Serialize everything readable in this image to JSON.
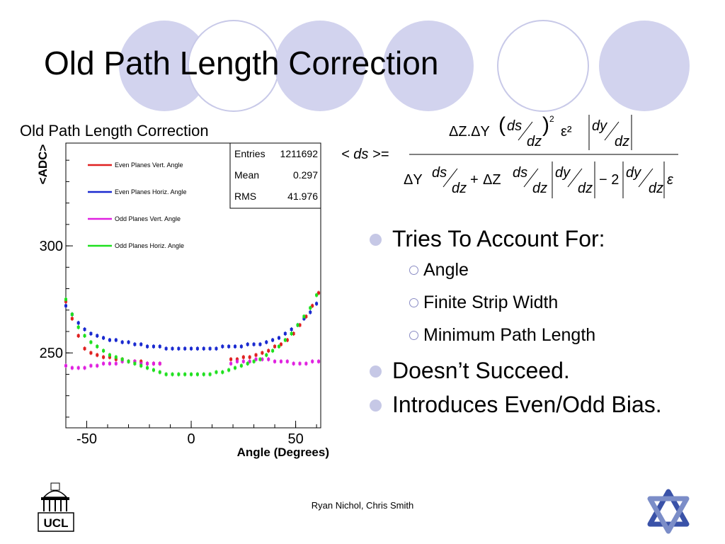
{
  "slide": {
    "title": "Old Path Length Correction",
    "footer": "Ryan Nichol, Chris Smith",
    "logo_left": "UCL"
  },
  "bullets": [
    {
      "text": "Tries To Account For:",
      "level": 1
    },
    {
      "text": "Angle",
      "level": 2
    },
    {
      "text": "Finite Strip Width",
      "level": 2
    },
    {
      "text": "Minimum Path Length",
      "level": 2
    },
    {
      "text": "Doesn’t Succeed.",
      "level": 1
    },
    {
      "text": "Introduces Even/Odd Bias.",
      "level": 1
    }
  ],
  "formula": {
    "lhs": "< ds >=",
    "num_a": "ΔZ.ΔY",
    "ds": "ds",
    "dz": "dz",
    "dy": "dy",
    "sq": "2",
    "minus": "−",
    "plus": "+",
    "eps": "ε",
    "epssq": "ε²",
    "dY": "ΔY",
    "dZ": "ΔZ",
    "two": "− 2"
  },
  "chart_data": {
    "type": "scatter",
    "title": "Old Path Length Correction",
    "xlabel": "Angle (Degrees)",
    "ylabel": "<ADC>",
    "xlim": [
      -60,
      62
    ],
    "ylim": [
      215,
      348
    ],
    "xticks": [
      -50,
      0,
      50
    ],
    "yticks": [
      250,
      300
    ],
    "stats": {
      "entries_label": "Entries",
      "entries": "1211692",
      "mean_label": "Mean",
      "mean": "0.297",
      "rms_label": "RMS",
      "rms": "41.976"
    },
    "series": [
      {
        "name": "Even Planes Vert. Angle",
        "color": "#e02020",
        "x": [
          -60,
          -57,
          -54,
          -51,
          -48,
          -45,
          -42,
          -39,
          -36,
          -33,
          -30,
          -27,
          -24,
          -21,
          -18,
          -15,
          19,
          22,
          25,
          28,
          31,
          34,
          37,
          40,
          43,
          46,
          49,
          52,
          55,
          58,
          61
        ],
        "y": [
          274,
          266,
          258,
          252,
          250,
          249,
          248,
          248,
          247,
          247,
          246,
          246,
          246,
          245,
          245,
          245,
          247,
          247,
          248,
          248,
          249,
          250,
          251,
          253,
          254,
          256,
          259,
          263,
          267,
          272,
          278
        ]
      },
      {
        "name": "Even Planes Horiz. Angle",
        "color": "#1a2ad0",
        "x": [
          -60,
          -57,
          -54,
          -51,
          -48,
          -45,
          -42,
          -39,
          -36,
          -33,
          -30,
          -27,
          -24,
          -21,
          -18,
          -15,
          -12,
          -9,
          -6,
          -3,
          0,
          3,
          6,
          9,
          12,
          15,
          18,
          21,
          24,
          27,
          30,
          33,
          36,
          39,
          42,
          45,
          48,
          51,
          54,
          57,
          60
        ],
        "y": [
          272,
          268,
          264,
          261,
          259,
          258,
          257,
          256,
          256,
          255,
          255,
          254,
          254,
          253,
          253,
          253,
          252,
          252,
          252,
          252,
          252,
          252,
          252,
          252,
          252,
          253,
          253,
          253,
          253,
          254,
          254,
          254,
          255,
          256,
          257,
          259,
          261,
          263,
          266,
          269,
          273
        ]
      },
      {
        "name": "Odd Planes Vert. Angle",
        "color": "#e020e0",
        "x": [
          -60,
          -57,
          -54,
          -51,
          -48,
          -45,
          -42,
          -39,
          -36,
          -33,
          -30,
          -27,
          -24,
          -21,
          -18,
          -15,
          19,
          22,
          25,
          28,
          31,
          34,
          37,
          40,
          43,
          46,
          49,
          52,
          55,
          58,
          61
        ],
        "y": [
          244,
          243,
          243,
          243,
          244,
          244,
          245,
          245,
          245,
          246,
          246,
          246,
          245,
          245,
          245,
          245,
          245,
          246,
          246,
          246,
          247,
          247,
          247,
          246,
          246,
          246,
          245,
          245,
          245,
          246,
          246
        ]
      },
      {
        "name": "Odd Planes Horiz. Angle",
        "color": "#1ee01e",
        "x": [
          -60,
          -57,
          -54,
          -51,
          -48,
          -45,
          -42,
          -39,
          -36,
          -33,
          -30,
          -27,
          -24,
          -21,
          -18,
          -15,
          -12,
          -9,
          -6,
          -3,
          0,
          3,
          6,
          9,
          12,
          15,
          18,
          21,
          24,
          27,
          30,
          33,
          36,
          39,
          42,
          45,
          48,
          51,
          54,
          57,
          60
        ],
        "y": [
          275,
          268,
          262,
          258,
          255,
          253,
          251,
          249,
          248,
          247,
          246,
          245,
          244,
          243,
          242,
          241,
          240,
          240,
          240,
          240,
          240,
          240,
          240,
          240,
          241,
          241,
          242,
          243,
          244,
          245,
          246,
          247,
          249,
          251,
          253,
          256,
          259,
          263,
          267,
          271,
          277
        ]
      }
    ]
  }
}
